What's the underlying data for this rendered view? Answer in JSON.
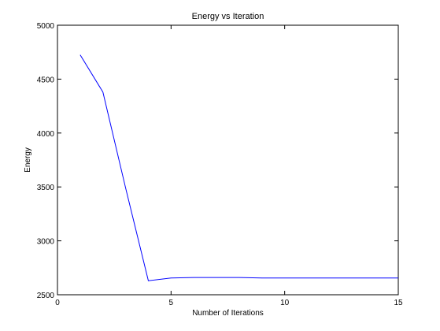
{
  "chart_data": {
    "type": "line",
    "title": "Energy vs Iteration",
    "xlabel": "Number of Iterations",
    "ylabel": "Energy",
    "xlim": [
      0,
      15
    ],
    "ylim": [
      2500,
      5000
    ],
    "x_ticks": [
      0,
      5,
      10,
      15
    ],
    "y_ticks": [
      2500,
      3000,
      3500,
      4000,
      4500,
      5000
    ],
    "grid": false,
    "series": [
      {
        "color": "#0000ff",
        "x": [
          1,
          2,
          3,
          4,
          5,
          6,
          7,
          8,
          9,
          10,
          11,
          12,
          13,
          14,
          15
        ],
        "values": [
          4725,
          4380,
          3490,
          2630,
          2655,
          2660,
          2660,
          2660,
          2655,
          2655,
          2655,
          2655,
          2655,
          2655,
          2655
        ]
      }
    ]
  }
}
